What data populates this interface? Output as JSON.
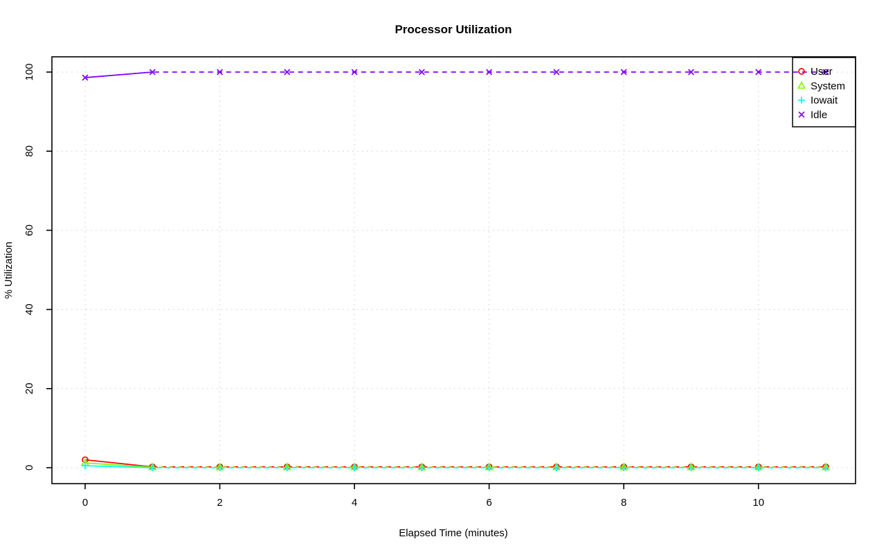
{
  "chart_data": {
    "type": "line",
    "title": "Processor Utilization",
    "xlabel": "Elapsed Time (minutes)",
    "ylabel": "% Utilization",
    "x": [
      0,
      1,
      2,
      3,
      4,
      5,
      6,
      7,
      8,
      9,
      10,
      11
    ],
    "xlim": [
      0,
      11
    ],
    "ylim": [
      0,
      100
    ],
    "x_ticks": [
      0,
      2,
      4,
      6,
      8,
      10
    ],
    "y_ticks": [
      0,
      20,
      40,
      60,
      80,
      100
    ],
    "grid": "dotted",
    "grid_color": "#c9c9c9",
    "axis_color": "#000000",
    "legend_position": "top-right",
    "line_style": "dashed",
    "series": [
      {
        "name": "User",
        "color": "#FF0000",
        "marker": "circle",
        "values": [
          2.0,
          0.2,
          0.2,
          0.2,
          0.2,
          0.2,
          0.2,
          0.2,
          0.2,
          0.2,
          0.2,
          0.2
        ]
      },
      {
        "name": "System",
        "color": "#80FF00",
        "marker": "triangle",
        "values": [
          1.2,
          0.1,
          0.1,
          0.1,
          0.1,
          0.1,
          0.1,
          0.1,
          0.1,
          0.1,
          0.1,
          0.1
        ]
      },
      {
        "name": "Iowait",
        "color": "#00FFFF",
        "marker": "plus",
        "values": [
          0.5,
          0.0,
          0.0,
          0.0,
          0.0,
          0.0,
          0.0,
          0.0,
          0.0,
          0.0,
          0.0,
          0.0
        ]
      },
      {
        "name": "Idle",
        "color": "#8000FF",
        "marker": "x",
        "values": [
          98.6,
          100,
          100,
          100,
          100,
          100,
          100,
          100,
          100,
          100,
          100,
          100
        ]
      }
    ],
    "legend": [
      "User",
      "System",
      "Iowait",
      "Idle"
    ]
  }
}
